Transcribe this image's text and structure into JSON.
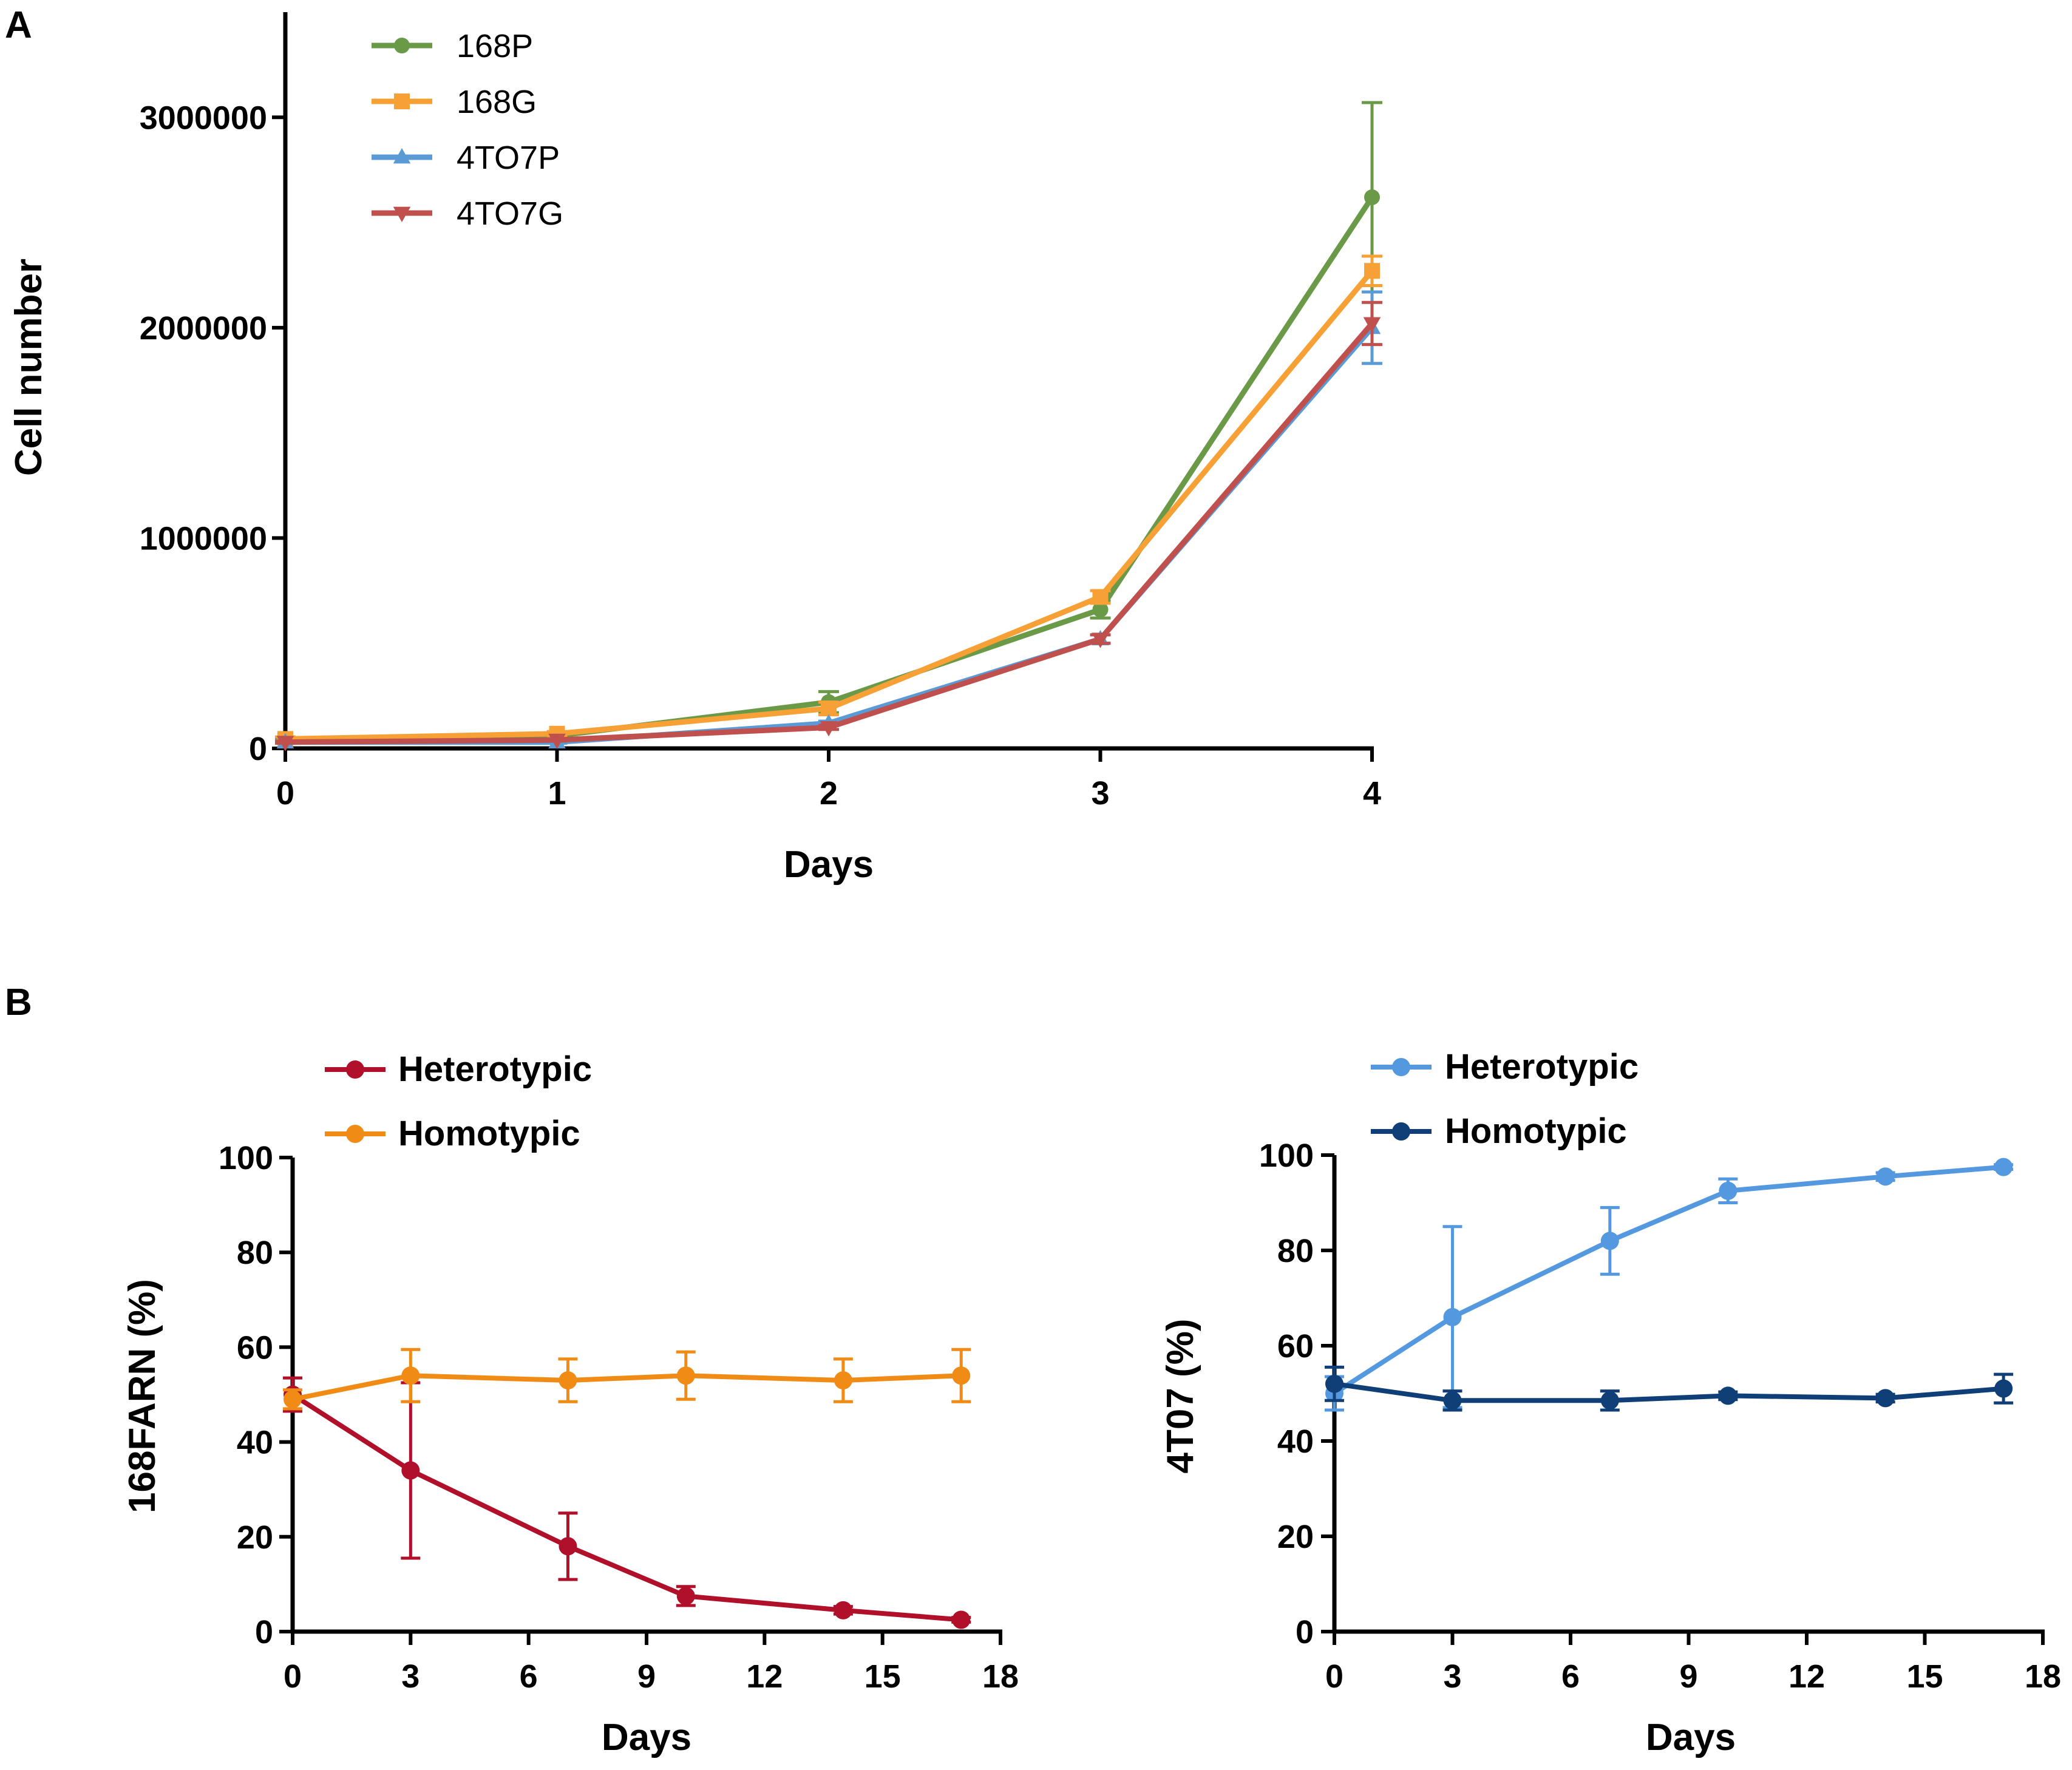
{
  "panels": {
    "a": {
      "letter": "A"
    },
    "b": {
      "letter": "B"
    }
  },
  "chart_data": [
    {
      "id": "A",
      "type": "line",
      "title": "",
      "xlabel": "Days",
      "ylabel": "Cell number",
      "x": [
        0,
        1,
        2,
        3,
        4
      ],
      "xticks": [
        "0",
        "1",
        "2",
        "3",
        "4"
      ],
      "xlim": [
        0,
        4
      ],
      "ylim": [
        0,
        3500000
      ],
      "yticks": [
        "0",
        "1000000",
        "2000000",
        "3000000"
      ],
      "ytick_values": [
        0,
        1000000,
        2000000,
        3000000
      ],
      "grid": false,
      "legend_position": "top-left",
      "series": [
        {
          "name": "168P",
          "color": "#6a9a48",
          "marker": "circle",
          "values": [
            40000,
            60000,
            220000,
            660000,
            2620000
          ],
          "errors": [
            10000,
            10000,
            50000,
            40000,
            450000
          ]
        },
        {
          "name": "168G",
          "color": "#f7a035",
          "marker": "square",
          "values": [
            45000,
            70000,
            190000,
            720000,
            2270000
          ],
          "errors": [
            10000,
            10000,
            30000,
            30000,
            70000
          ]
        },
        {
          "name": "4TO7P",
          "color": "#5b9bd5",
          "marker": "triangle-up",
          "values": [
            30000,
            30000,
            120000,
            520000,
            2000000
          ],
          "errors": [
            5000,
            5000,
            10000,
            20000,
            170000
          ]
        },
        {
          "name": "4TO7G",
          "color": "#c0504d",
          "marker": "triangle-down",
          "values": [
            30000,
            40000,
            100000,
            520000,
            2020000
          ],
          "errors": [
            5000,
            5000,
            10000,
            20000,
            100000
          ]
        }
      ]
    },
    {
      "id": "B-left",
      "type": "line",
      "title": "",
      "xlabel": "Days",
      "ylabel": "168FARN (%)",
      "x": [
        0,
        3,
        7,
        10,
        14,
        17
      ],
      "xticks": [
        "0",
        "3",
        "6",
        "9",
        "12",
        "15",
        "18"
      ],
      "xtick_values": [
        0,
        3,
        6,
        9,
        12,
        15,
        18
      ],
      "xlim": [
        0,
        18
      ],
      "ylim": [
        0,
        100
      ],
      "yticks": [
        "0",
        "20",
        "40",
        "60",
        "80",
        "100"
      ],
      "ytick_values": [
        0,
        20,
        40,
        60,
        80,
        100
      ],
      "grid": false,
      "legend_position": "top-left",
      "series": [
        {
          "name": "Heterotypic",
          "color": "#b0102a",
          "values": [
            50,
            34,
            18,
            7.5,
            4.5,
            2.5
          ],
          "errors": [
            3.5,
            18.5,
            7,
            2,
            0.8,
            0.5
          ]
        },
        {
          "name": "Homotypic",
          "color": "#f08c16",
          "values": [
            49,
            54,
            53,
            54,
            53,
            54
          ],
          "errors": [
            2,
            5.5,
            4.5,
            5,
            4.5,
            5.5
          ]
        }
      ]
    },
    {
      "id": "B-right",
      "type": "line",
      "title": "",
      "xlabel": "Days",
      "ylabel": "4T07 (%)",
      "x": [
        0,
        3,
        7,
        10,
        14,
        17
      ],
      "xticks": [
        "0",
        "3",
        "6",
        "9",
        "12",
        "15",
        "18"
      ],
      "xtick_values": [
        0,
        3,
        6,
        9,
        12,
        15,
        18
      ],
      "xlim": [
        0,
        18
      ],
      "ylim": [
        0,
        100
      ],
      "yticks": [
        "0",
        "20",
        "40",
        "60",
        "80",
        "100"
      ],
      "ytick_values": [
        0,
        20,
        40,
        60,
        80,
        100
      ],
      "grid": false,
      "legend_position": "top-left",
      "series": [
        {
          "name": "Heterotypic",
          "color": "#5499e0",
          "values": [
            50,
            66,
            82,
            92.5,
            95.5,
            97.5
          ],
          "errors": [
            3.5,
            19,
            7,
            2.5,
            0.8,
            0.5
          ]
        },
        {
          "name": "Homotypic",
          "color": "#103f78",
          "values": [
            52,
            48.5,
            48.5,
            49.5,
            49,
            51
          ],
          "errors": [
            3.5,
            2,
            2,
            0.8,
            0.8,
            3
          ]
        }
      ]
    }
  ]
}
